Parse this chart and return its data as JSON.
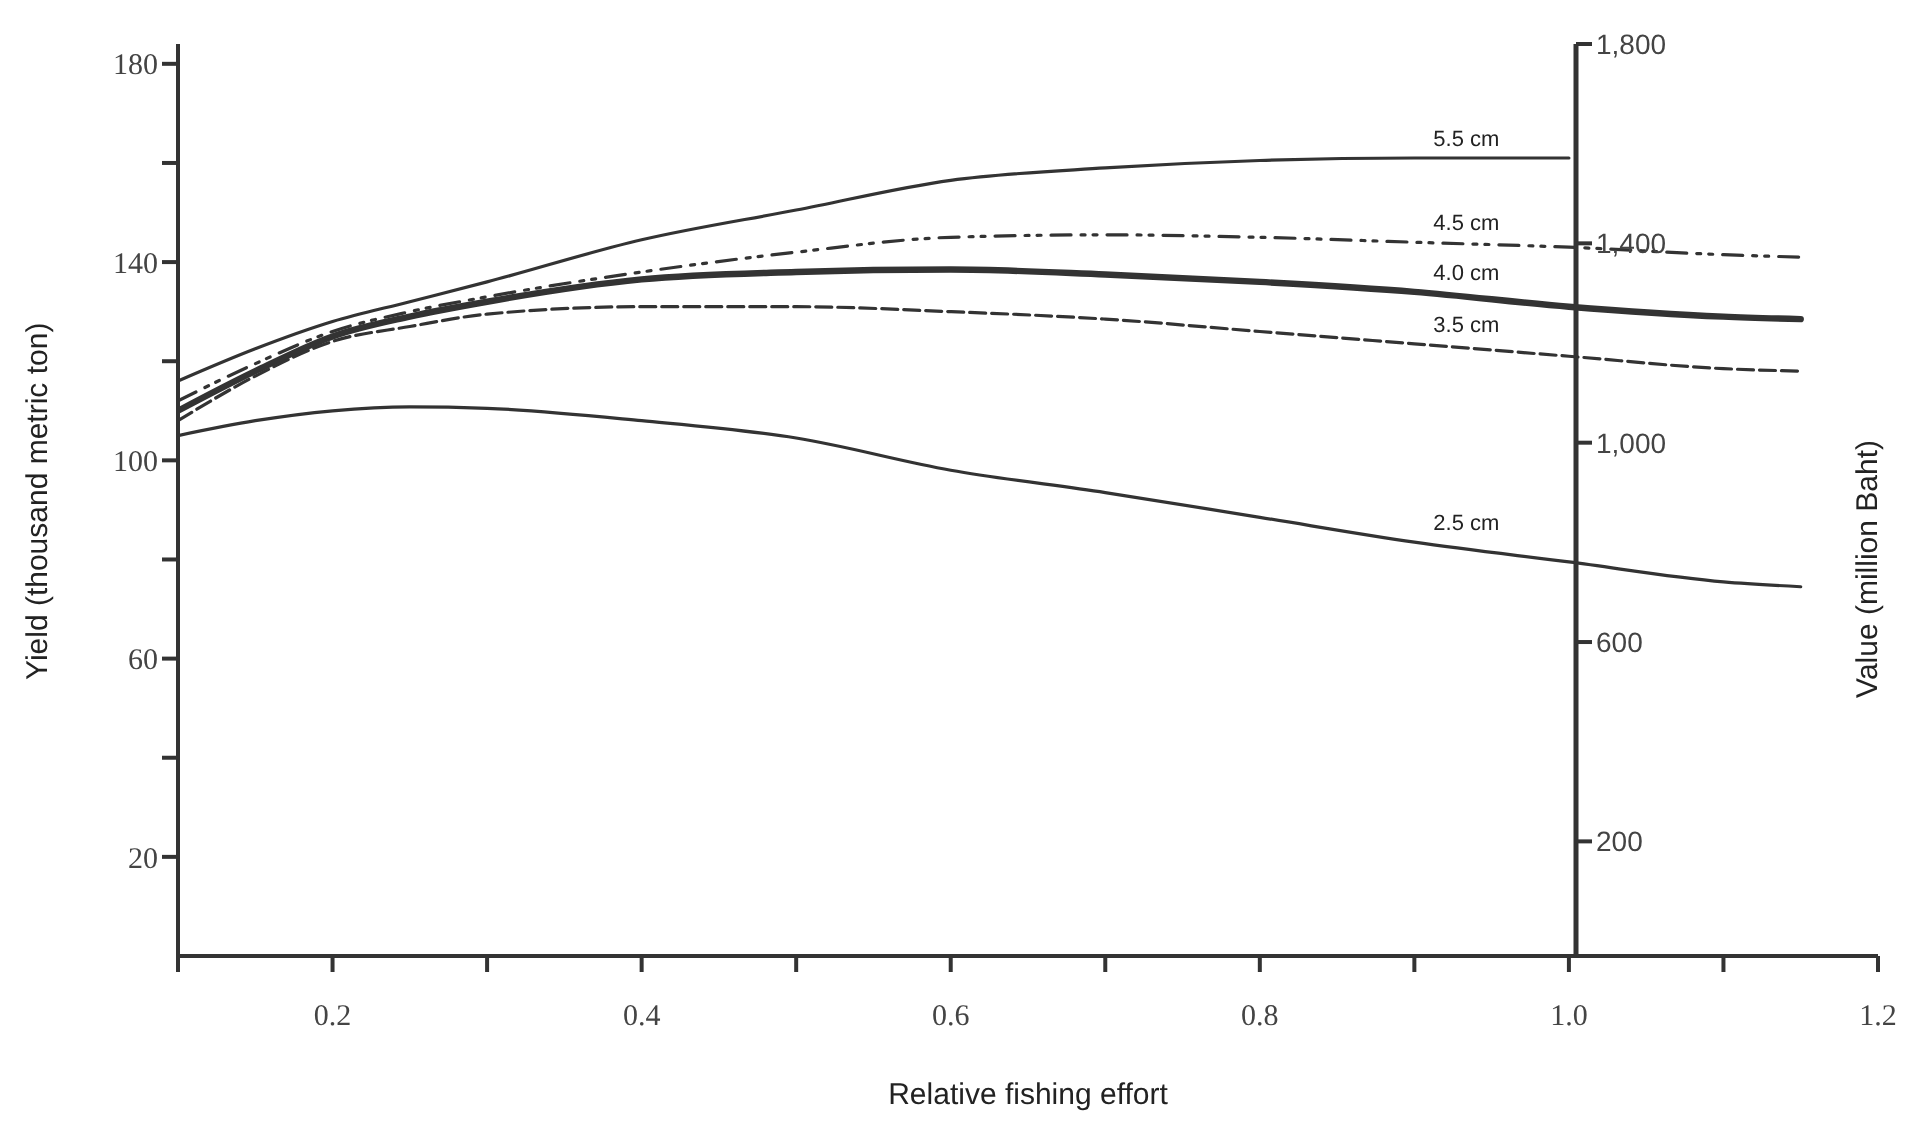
{
  "chart_data": {
    "type": "line",
    "xlabel": "Relative fishing effort",
    "ylabel": "Yield (thousand metric ton)",
    "y2label": "Value (million Baht)",
    "x": [
      0.1,
      0.15,
      0.2,
      0.25,
      0.3,
      0.4,
      0.5,
      0.6,
      0.7,
      0.8,
      0.9,
      1.0,
      1.1,
      1.15
    ],
    "series": [
      {
        "name": "5.5 cm",
        "color": "#333333",
        "line_style": "solid",
        "values": [
          116,
          122.5,
          128,
          132,
          136,
          144.5,
          150.5,
          156.5,
          159,
          160.5,
          161,
          161,
          null,
          null
        ]
      },
      {
        "name": "4.5 cm",
        "color": "#333333",
        "line_style": "dashdot",
        "values": [
          112,
          119.5,
          126,
          130,
          133,
          138,
          142,
          145,
          145.5,
          145,
          144,
          143,
          141.5,
          141
        ]
      },
      {
        "name": "4.0 cm",
        "color": "#333333",
        "line_style": "solid",
        "values": [
          110,
          118,
          125,
          129,
          132,
          136.5,
          138,
          138.5,
          137.5,
          136,
          134,
          131,
          129,
          128.5
        ]
      },
      {
        "name": "3.5 cm",
        "color": "#333333",
        "line_style": "dashed",
        "values": [
          108,
          117,
          124,
          127,
          129.5,
          131,
          131,
          130,
          128.5,
          126,
          123.5,
          121,
          118.5,
          118
        ]
      },
      {
        "name": "2.5 cm",
        "color": "#333333",
        "line_style": "solid",
        "values": [
          105,
          108,
          110,
          110.8,
          110.5,
          108,
          104.5,
          98,
          93.5,
          88.5,
          83.5,
          79.5,
          75.5,
          74.5
        ]
      }
    ],
    "xlim": [
      0.1,
      1.2
    ],
    "xticks": [
      {
        "value": 0.1,
        "label": null
      },
      0.2,
      {
        "value": 0.3,
        "label": null
      },
      0.4,
      {
        "value": 0.5,
        "label": null
      },
      0.6,
      {
        "value": 0.7,
        "label": null
      },
      0.8,
      {
        "value": 0.9,
        "label": null
      },
      {
        "value": 1,
        "label": "1.0"
      },
      {
        "value": 1.1,
        "label": null
      },
      1.2
    ],
    "ylim": [
      0,
      184
    ],
    "yticks": [
      20,
      {
        "value": 40,
        "label": null
      },
      60,
      {
        "value": 80,
        "label": null
      },
      100,
      {
        "value": 120,
        "label": null
      },
      140,
      {
        "value": 160,
        "label": null
      },
      180
    ],
    "y2lim": [
      -30,
      1800
    ],
    "y2ticks": [
      200,
      600,
      {
        "value": 1000,
        "label": "1,000"
      },
      {
        "value": 1400,
        "label": "1,400"
      },
      {
        "value": 1800,
        "label": "1,800"
      }
    ],
    "grid": false,
    "legend": false,
    "marker": "none"
  }
}
